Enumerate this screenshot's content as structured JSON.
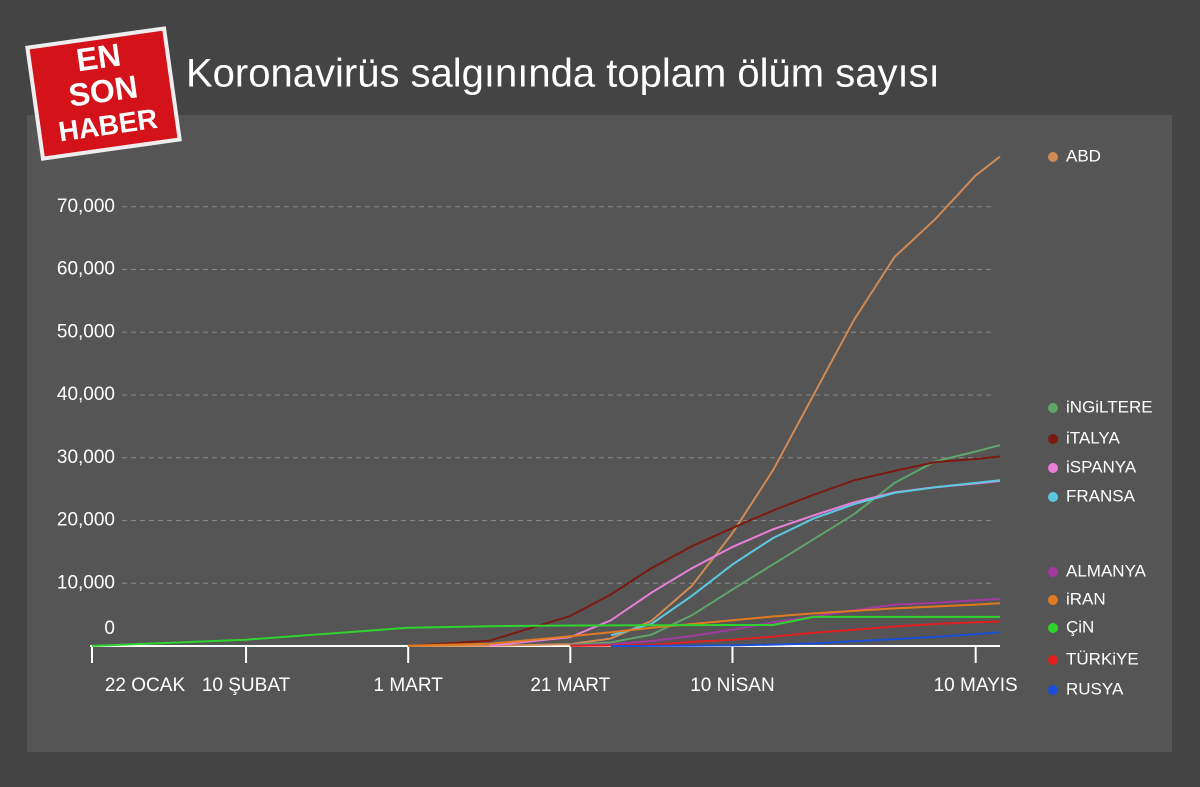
{
  "logo": [
    "EN",
    "SON",
    "HABER"
  ],
  "chart_data": {
    "type": "line",
    "title": "Koronavirüs salgınında toplam ölüm sayısı",
    "x": [
      "01-22",
      "02-10",
      "03-01",
      "03-11",
      "03-21",
      "03-26",
      "03-31",
      "04-05",
      "04-10",
      "04-15",
      "04-20",
      "04-25",
      "04-30",
      "05-05",
      "05-10",
      "05-13"
    ],
    "xticks": [
      {
        "value": "01-22",
        "label": "22 OCAK"
      },
      {
        "value": "02-10",
        "label": "10 ŞUBAT"
      },
      {
        "value": "03-01",
        "label": "1 MART"
      },
      {
        "value": "03-21",
        "label": "21 MART"
      },
      {
        "value": "04-10",
        "label": "10 NİSAN"
      },
      {
        "value": "05-10",
        "label": "10 MAYIS"
      }
    ],
    "ylim": [
      0,
      80000
    ],
    "yticks": [
      0,
      {
        "value": 10000,
        "label": "10,000"
      },
      {
        "value": 20000,
        "label": "20,000"
      },
      {
        "value": 30000,
        "label": "30,000"
      },
      {
        "value": 40000,
        "label": "40,000"
      },
      {
        "value": 50000,
        "label": "50,000"
      },
      {
        "value": 60000,
        "label": "60,000"
      },
      {
        "value": 70000,
        "label": "70,000"
      }
    ],
    "grid": true,
    "legend": "right",
    "series": [
      {
        "name": "ABD",
        "color": "#d08a55",
        "values": [
          null,
          null,
          1,
          30,
          300,
          1200,
          4000,
          9600,
          18000,
          28000,
          40000,
          52000,
          62000,
          68000,
          75000,
          78000
        ]
      },
      {
        "name": "iNGiLTERE",
        "color": "#5fa46a",
        "values": [
          null,
          null,
          null,
          null,
          230,
          580,
          1800,
          4900,
          9000,
          13000,
          17000,
          21000,
          26000,
          29400,
          31000,
          32000
        ]
      },
      {
        "name": "iTALYA",
        "color": "#7a1a10",
        "values": [
          null,
          null,
          34,
          830,
          4800,
          8200,
          12400,
          15900,
          18800,
          21600,
          24100,
          26400,
          27900,
          29300,
          29800,
          30200
        ]
      },
      {
        "name": "iSPANYA",
        "color": "#e87fd8",
        "values": [
          null,
          null,
          null,
          50,
          1400,
          4100,
          8500,
          12400,
          15800,
          18600,
          20800,
          22900,
          24500,
          25300,
          25900,
          26300
        ]
      },
      {
        "name": "FRANSA",
        "color": "#5cc8e0",
        "values": [
          null,
          null,
          null,
          null,
          null,
          1700,
          3500,
          8000,
          13000,
          17200,
          20300,
          22600,
          24400,
          25300,
          26000,
          26400
        ]
      },
      {
        "name": "ALMANYA",
        "color": "#a33a9e",
        "values": [
          null,
          null,
          null,
          null,
          80,
          250,
          800,
          1600,
          2600,
          3800,
          4700,
          5700,
          6600,
          6900,
          7300,
          7500
        ]
      },
      {
        "name": "iRAN",
        "color": "#e07a20",
        "values": [
          null,
          null,
          66,
          350,
          1550,
          2200,
          2900,
          3500,
          4100,
          4700,
          5200,
          5600,
          6000,
          6300,
          6600,
          6800
        ]
      },
      {
        "name": "ÇiN",
        "color": "#2fd42f",
        "values": [
          17,
          1000,
          2900,
          3160,
          3260,
          3290,
          3310,
          3330,
          3340,
          3345,
          4630,
          4630,
          4633,
          4633,
          4633,
          4633
        ]
      },
      {
        "name": "TÜRKiYE",
        "color": "#e02020",
        "values": [
          null,
          null,
          null,
          null,
          21,
          75,
          210,
          650,
          1000,
          1500,
          2100,
          2600,
          3100,
          3500,
          3800,
          3900
        ]
      },
      {
        "name": "RUSYA",
        "color": "#1a4fd8",
        "values": [
          null,
          null,
          null,
          null,
          null,
          3,
          17,
          50,
          100,
          230,
          400,
          750,
          1100,
          1450,
          1900,
          2200
        ]
      }
    ]
  }
}
